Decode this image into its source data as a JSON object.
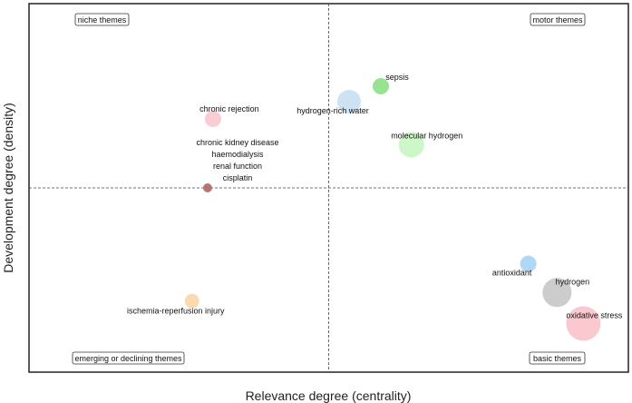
{
  "chart_data": {
    "type": "scatter",
    "xlabel": "Relevance degree (centrality)",
    "ylabel": "Development degree (density)",
    "xlim": [
      0,
      100
    ],
    "ylim": [
      0,
      100
    ],
    "divider": {
      "x": 50,
      "y": 50
    },
    "grid": false,
    "quadrants": {
      "top_left": "niche themes",
      "top_right": "motor themes",
      "bottom_left": "emerging or declining themes",
      "bottom_right": "basic themes"
    },
    "points": [
      {
        "label": "sepsis",
        "x": 58.7,
        "y": 77.6,
        "size": 9,
        "color": "#8fe08a"
      },
      {
        "label": "hydrogen-rich water",
        "x": 53.4,
        "y": 73.4,
        "size": 13,
        "color": "#c9e1f2"
      },
      {
        "label": "molecular hydrogen",
        "x": 63.8,
        "y": 61.7,
        "size": 14,
        "color": "#c9f5c4"
      },
      {
        "label": "chronic rejection",
        "x": 30.7,
        "y": 68.7,
        "size": 9,
        "color": "#f9c9cf"
      },
      {
        "label": "cisplatin",
        "x": 29.8,
        "y": 50.0,
        "size": 5,
        "color": "#b06a6a",
        "extra_labels": [
          "chronic kidney disease",
          "haemodialysis",
          "renal function",
          "cisplatin"
        ]
      },
      {
        "label": "antioxidant",
        "x": 83.3,
        "y": 29.4,
        "size": 9,
        "color": "#a9d4f5"
      },
      {
        "label": "hydrogen",
        "x": 88.1,
        "y": 21.6,
        "size": 16,
        "color": "#c8c8c8"
      },
      {
        "label": "oxidative stress",
        "x": 92.5,
        "y": 13.2,
        "size": 19,
        "color": "#fac3cb"
      },
      {
        "label": "ischemia-reperfusion injury",
        "x": 27.2,
        "y": 19.3,
        "size": 8,
        "color": "#fbd6ad"
      }
    ]
  }
}
